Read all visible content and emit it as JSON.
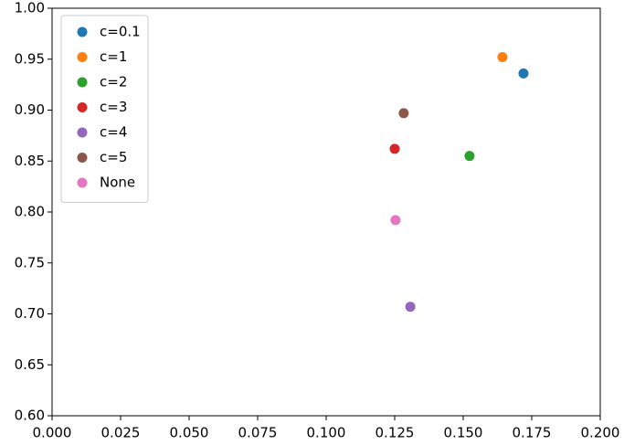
{
  "chart_data": {
    "type": "scatter",
    "series": [
      {
        "name": "c=0.1",
        "color": "#1f77b4",
        "x": [
          0.172
        ],
        "values": [
          0.936
        ]
      },
      {
        "name": "c=1",
        "color": "#ff7f0e",
        "x": [
          0.1643
        ],
        "values": [
          0.952
        ]
      },
      {
        "name": "c=2",
        "color": "#2ca02c",
        "x": [
          0.1523
        ],
        "values": [
          0.855
        ]
      },
      {
        "name": "c=3",
        "color": "#d62728",
        "x": [
          0.125
        ],
        "values": [
          0.862
        ]
      },
      {
        "name": "c=4",
        "color": "#9467bd",
        "x": [
          0.1307
        ],
        "values": [
          0.707
        ]
      },
      {
        "name": "c=5",
        "color": "#8c564b",
        "x": [
          0.1283
        ],
        "values": [
          0.897
        ]
      },
      {
        "name": "None",
        "color": "#e377c2",
        "x": [
          0.1253
        ],
        "values": [
          0.792
        ]
      }
    ],
    "xlim": [
      0,
      0.2
    ],
    "xticks": [
      {
        "value": 0,
        "label": "0.000"
      },
      {
        "value": 0.025,
        "label": "0.025"
      },
      {
        "value": 0.05,
        "label": "0.050"
      },
      {
        "value": 0.075,
        "label": "0.075"
      },
      {
        "value": 0.1,
        "label": "0.100"
      },
      {
        "value": 0.125,
        "label": "0.125"
      },
      {
        "value": 0.15,
        "label": "0.150"
      },
      {
        "value": 0.175,
        "label": "0.175"
      },
      {
        "value": 0.2,
        "label": "0.200"
      }
    ],
    "ylim": [
      0.6,
      1.0
    ],
    "yticks": [
      {
        "value": 0.6,
        "label": "0.60"
      },
      {
        "value": 0.65,
        "label": "0.65"
      },
      {
        "value": 0.7,
        "label": "0.70"
      },
      {
        "value": 0.75,
        "label": "0.75"
      },
      {
        "value": 0.8,
        "label": "0.80"
      },
      {
        "value": 0.85,
        "label": "0.85"
      },
      {
        "value": 0.9,
        "label": "0.90"
      },
      {
        "value": 0.95,
        "label": "0.95"
      },
      {
        "value": 1.0,
        "label": "1.00"
      }
    ],
    "legend": "upper left"
  }
}
